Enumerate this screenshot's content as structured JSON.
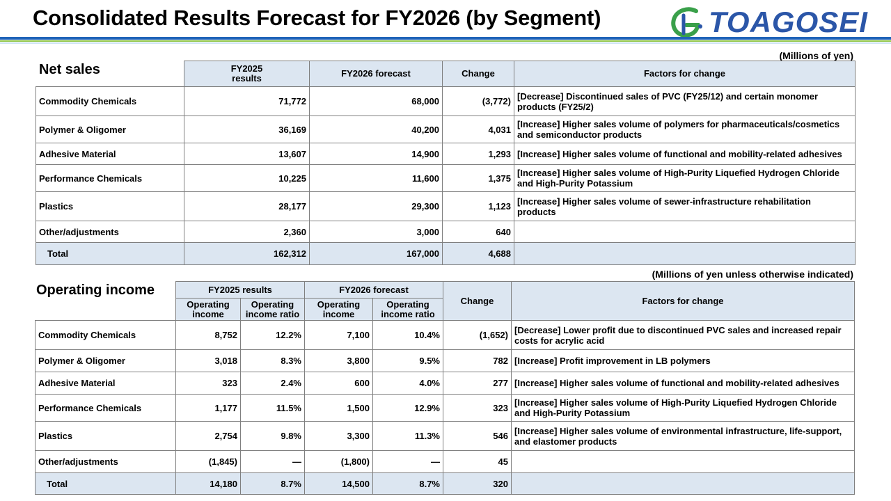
{
  "header": {
    "title": "Consolidated Results Forecast for FY2026 (by Segment)",
    "logo_text": "TOAGOSEI"
  },
  "net_sales": {
    "section_title": "Net sales",
    "unit_note": "(Millions of yen)",
    "columns": {
      "fy2025": "FY2025 results",
      "fy2026": "FY2026 forecast",
      "change": "Change",
      "factors": "Factors for change"
    },
    "rows": [
      {
        "segment": "Commodity Chemicals",
        "fy2025": "71,772",
        "fy2026": "68,000",
        "change": "(3,772)",
        "factor": "[Decrease] Discontinued sales of PVC (FY25/12) and certain monomer products (FY25/2)"
      },
      {
        "segment": "Polymer & Oligomer",
        "fy2025": "36,169",
        "fy2026": "40,200",
        "change": "4,031",
        "factor": "[Increase] Higher sales volume of polymers for pharmaceuticals/cosmetics and semiconductor products"
      },
      {
        "segment": "Adhesive Material",
        "fy2025": "13,607",
        "fy2026": "14,900",
        "change": "1,293",
        "factor": "[Increase] Higher sales volume of functional and mobility-related adhesives"
      },
      {
        "segment": "Performance Chemicals",
        "fy2025": "10,225",
        "fy2026": "11,600",
        "change": "1,375",
        "factor": "[Increase] Higher sales volume of High-Purity Liquefied Hydrogen Chloride and High-Purity Potassium"
      },
      {
        "segment": "Plastics",
        "fy2025": "28,177",
        "fy2026": "29,300",
        "change": "1,123",
        "factor": "[Increase] Higher sales volume of sewer-infrastructure rehabilitation products"
      },
      {
        "segment": "Other/adjustments",
        "fy2025": "2,360",
        "fy2026": "3,000",
        "change": "640",
        "factor": ""
      },
      {
        "segment": "Total",
        "fy2025": "162,312",
        "fy2026": "167,000",
        "change": "4,688",
        "factor": ""
      }
    ]
  },
  "operating_income": {
    "section_title": "Operating income",
    "unit_note": "(Millions of yen unless otherwise indicated)",
    "columns": {
      "fy2025": "FY2025 results",
      "fy2026": "FY2026 forecast",
      "income": "Operating income",
      "ratio": "Operating income ratio",
      "change": "Change",
      "factors": "Factors for change"
    },
    "rows": [
      {
        "segment": "Commodity Chemicals",
        "fy2025_income": "8,752",
        "fy2025_ratio": "12.2%",
        "fy2026_income": "7,100",
        "fy2026_ratio": "10.4%",
        "change": "(1,652)",
        "factor": "[Decrease] Lower profit due to discontinued PVC sales and increased repair costs for acrylic acid"
      },
      {
        "segment": "Polymer & Oligomer",
        "fy2025_income": "3,018",
        "fy2025_ratio": "8.3%",
        "fy2026_income": "3,800",
        "fy2026_ratio": "9.5%",
        "change": "782",
        "factor": "[Increase] Profit improvement in LB polymers"
      },
      {
        "segment": "Adhesive Material",
        "fy2025_income": "323",
        "fy2025_ratio": "2.4%",
        "fy2026_income": "600",
        "fy2026_ratio": "4.0%",
        "change": "277",
        "factor": "[Increase] Higher sales volume of functional and mobility-related adhesives"
      },
      {
        "segment": "Performance Chemicals",
        "fy2025_income": "1,177",
        "fy2025_ratio": "11.5%",
        "fy2026_income": "1,500",
        "fy2026_ratio": "12.9%",
        "change": "323",
        "factor": "[Increase] Higher sales volume of High-Purity Liquefied Hydrogen Chloride and High-Purity Potassium"
      },
      {
        "segment": "Plastics",
        "fy2025_income": "2,754",
        "fy2025_ratio": "9.8%",
        "fy2026_income": "3,300",
        "fy2026_ratio": "11.3%",
        "change": "546",
        "factor": "[Increase] Higher sales volume of environmental infrastructure, life-support, and elastomer products"
      },
      {
        "segment": "Other/adjustments",
        "fy2025_income": "(1,845)",
        "fy2025_ratio": "—",
        "fy2026_income": "(1,800)",
        "fy2026_ratio": "—",
        "change": "45",
        "factor": ""
      },
      {
        "segment": "Total",
        "fy2025_income": "14,180",
        "fy2025_ratio": "8.7%",
        "fy2026_income": "14,500",
        "fy2026_ratio": "8.7%",
        "change": "320",
        "factor": ""
      }
    ]
  }
}
